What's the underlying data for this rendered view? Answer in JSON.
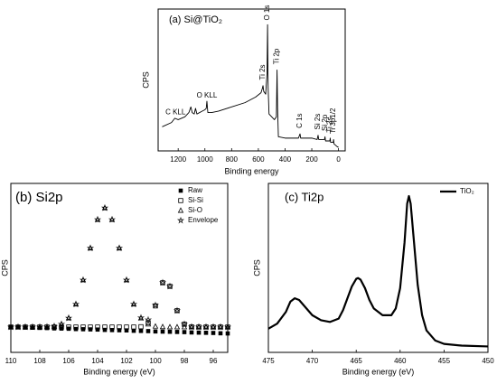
{
  "chart_data": [
    {
      "type": "line",
      "title": "(a) Si@TiO₂",
      "xlabel": "Binding energy",
      "ylabel": "CPS",
      "xlim": [
        1350,
        -50
      ],
      "ylim": [
        0,
        100
      ],
      "xticks": [
        1200,
        1000,
        800,
        600,
        400,
        200,
        0
      ],
      "x": [
        1320,
        1250,
        1225,
        1200,
        1150,
        1120,
        1105,
        1095,
        1080,
        1070,
        1060,
        1020,
        1000,
        990,
        985,
        978,
        950,
        900,
        800,
        700,
        620,
        580,
        570,
        565,
        560,
        545,
        535,
        531,
        527,
        520,
        480,
        465,
        460,
        456,
        453,
        450,
        400,
        300,
        288,
        283,
        200,
        160,
        153,
        148,
        105,
        101,
        97,
        65,
        62,
        59,
        40,
        37,
        34,
        10,
        0
      ],
      "series": [
        {
          "color": "#000000",
          "values": [
            17,
            20,
            23,
            22,
            24,
            27,
            31,
            27,
            26,
            30,
            26,
            28,
            29,
            30,
            35,
            27,
            27,
            28,
            31,
            34,
            38,
            41,
            44,
            46,
            42,
            40,
            55,
            89,
            45,
            26,
            22,
            24,
            57,
            30,
            20,
            10,
            9,
            9,
            12,
            9,
            9,
            8,
            11,
            8,
            8,
            10,
            7,
            7,
            9,
            6,
            6,
            8,
            5,
            3,
            2.5
          ]
        }
      ],
      "annotations": [
        {
          "text": "C KLL",
          "x": 1220,
          "y": 27
        },
        {
          "text": "O KLL",
          "x": 985,
          "y": 39
        },
        {
          "text": "Ti 2s",
          "x": 565,
          "y": 50
        },
        {
          "text": "O 1s",
          "x": 531,
          "y": 92
        },
        {
          "text": "Ti 2p",
          "x": 460,
          "y": 61
        },
        {
          "text": "C 1s",
          "x": 288,
          "y": 16
        },
        {
          "text": "Si 2s",
          "x": 153,
          "y": 15
        },
        {
          "text": "Si 2p",
          "x": 101,
          "y": 14
        },
        {
          "text": "Ti 3s",
          "x": 62,
          "y": 13
        },
        {
          "text": "Ti 3p1/2",
          "x": 37,
          "y": 12
        }
      ]
    },
    {
      "type": "scatter",
      "title": "(b) Si2p",
      "xlabel": "Binding energy (eV)",
      "ylabel": "CPS",
      "xlim": [
        110,
        95
      ],
      "ylim": [
        0,
        100
      ],
      "xticks": [
        110,
        108,
        106,
        104,
        102,
        100,
        98,
        96
      ],
      "legend": "upper right",
      "x": [
        110,
        109.5,
        109,
        108.5,
        108,
        107.5,
        107,
        106.5,
        106,
        105.5,
        105,
        104.5,
        104,
        103.5,
        103,
        102.5,
        102,
        101.5,
        101,
        100.5,
        100,
        99.5,
        99,
        98.5,
        98,
        97.5,
        97,
        96.5,
        96,
        95.5,
        95
      ],
      "series": [
        {
          "name": "Raw",
          "color": "#000000",
          "marker": "square-filled",
          "values": [
            15,
            14.9,
            14.7,
            14.6,
            14.5,
            14.4,
            14.2,
            14.1,
            14,
            13.8,
            13.7,
            13.6,
            13.5,
            13.3,
            13.2,
            13.1,
            13,
            12.8,
            12.7,
            12.6,
            12.4,
            12.3,
            12.2,
            12.1,
            12,
            11.8,
            11.7,
            11.6,
            11.5,
            11.3,
            11.2
          ]
        },
        {
          "name": "Si-Si",
          "color": "#000000",
          "marker": "square-open",
          "values": [
            15,
            15,
            15,
            15,
            15,
            15,
            15,
            15,
            15,
            15,
            15,
            15,
            15,
            15,
            15,
            15,
            15,
            15,
            15.2,
            17.6,
            27.5,
            41.2,
            39.1,
            24.7,
            16.7,
            15.1,
            15,
            15,
            15,
            15,
            15
          ]
        },
        {
          "name": "Si-O",
          "color": "#000000",
          "marker": "triangle-open",
          "values": [
            15,
            15,
            15,
            15,
            15,
            15.1,
            15.4,
            16.7,
            20.3,
            28.5,
            42.8,
            61.7,
            78.6,
            85.5,
            78.6,
            61.7,
            42.8,
            28.5,
            20.3,
            16.7,
            15.4,
            15.1,
            15,
            15,
            15,
            15,
            15,
            15,
            15,
            15,
            15
          ]
        },
        {
          "name": "Envelope",
          "color": "#000000",
          "marker": "star-open",
          "values": [
            15,
            15,
            15,
            15,
            15,
            15.1,
            15.4,
            16.7,
            20.3,
            28.5,
            42.8,
            61.7,
            78.6,
            85.5,
            78.6,
            61.7,
            42.8,
            28.5,
            20.5,
            19.3,
            27.9,
            41.3,
            39.1,
            24.7,
            16.7,
            15.1,
            15,
            15,
            15,
            15,
            15
          ]
        }
      ]
    },
    {
      "type": "line",
      "title": "(c) Ti2p",
      "xlabel": "Binding energy (eV)",
      "ylabel": "CPS",
      "xlim": [
        475,
        450
      ],
      "ylim": [
        0,
        100
      ],
      "xticks": [
        475,
        470,
        465,
        460,
        455,
        450
      ],
      "legend": "upper right",
      "x": [
        475,
        474,
        473,
        472.5,
        472,
        471.5,
        471,
        470,
        469,
        468,
        467,
        466.5,
        466,
        465.5,
        465,
        464.8,
        464.5,
        464,
        463.5,
        463,
        462,
        461,
        460.5,
        460,
        459.5,
        459.2,
        459,
        458.8,
        458.5,
        458,
        457.5,
        457,
        456,
        455,
        453,
        450
      ],
      "series": [
        {
          "name": "TiO₂",
          "color": "#000000",
          "values": [
            14,
            17,
            24,
            30,
            32,
            31,
            28,
            22,
            19,
            18,
            20,
            25,
            32,
            39,
            43.5,
            44,
            43,
            38,
            31,
            26,
            22,
            22,
            26,
            38,
            65,
            88,
            92.5,
            88,
            70,
            40,
            22,
            13,
            7,
            5,
            4,
            3.5
          ]
        }
      ]
    }
  ]
}
